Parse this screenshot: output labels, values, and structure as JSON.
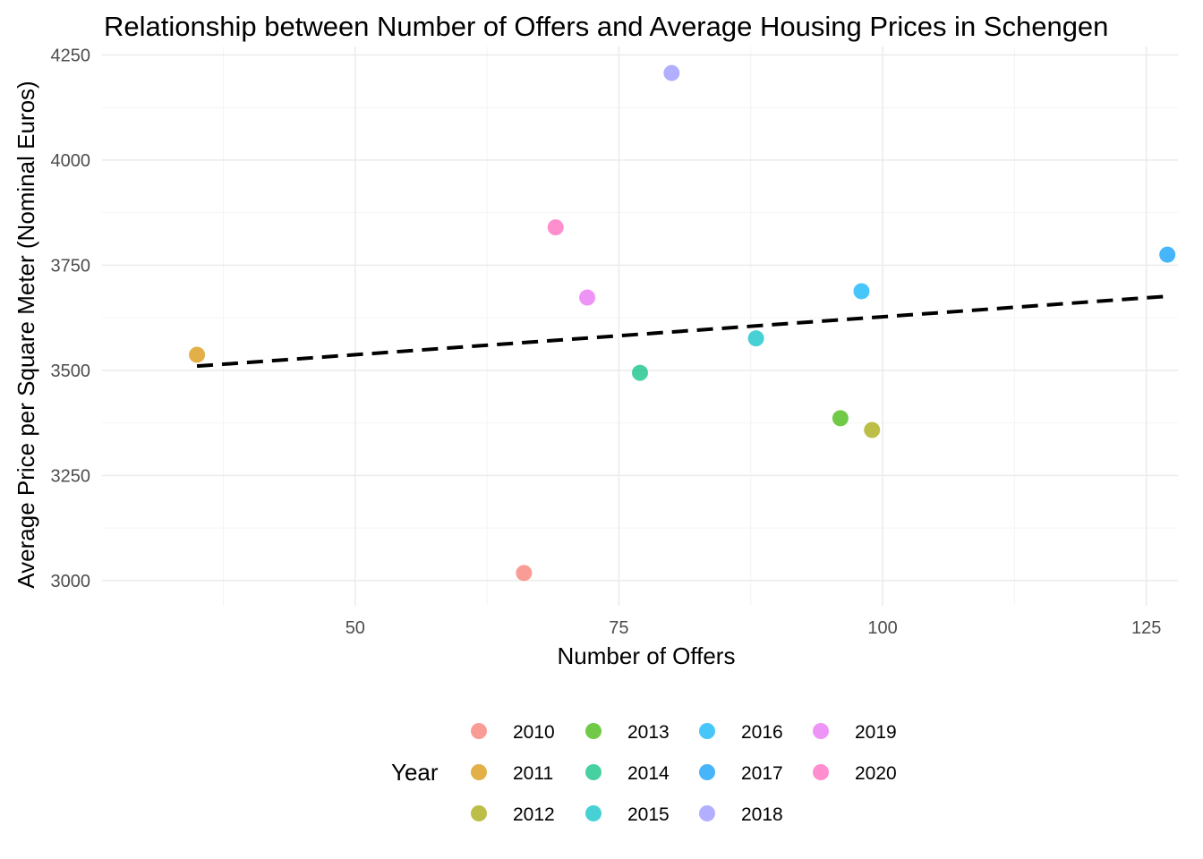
{
  "chart_data": {
    "type": "scatter",
    "title": "Relationship between Number of Offers and Average Housing Prices in Schengen",
    "xlabel": "Number of Offers",
    "ylabel": "Average Price per Square Meter (Nominal Euros)",
    "xlim": [
      26,
      128
    ],
    "ylim": [
      2940,
      4270
    ],
    "x_ticks": [
      50,
      75,
      100,
      125
    ],
    "y_ticks": [
      3000,
      3250,
      3500,
      3750,
      4000,
      4250
    ],
    "x_tick_labels": [
      "50",
      "75",
      "100",
      "125"
    ],
    "y_tick_labels": [
      "3000",
      "3250",
      "3500",
      "3750",
      "4000",
      "4250"
    ],
    "grid": true,
    "legend": {
      "title": "Year",
      "placement": "bottom"
    },
    "series": [
      {
        "name": "2010",
        "color": "#F8766D",
        "x": 66,
        "y": 3018
      },
      {
        "name": "2011",
        "color": "#D89000",
        "x": 35,
        "y": 3537
      },
      {
        "name": "2012",
        "color": "#A3A500",
        "x": 99,
        "y": 3358
      },
      {
        "name": "2013",
        "color": "#39B600",
        "x": 96,
        "y": 3386
      },
      {
        "name": "2014",
        "color": "#00BF7D",
        "x": 77,
        "y": 3494
      },
      {
        "name": "2015",
        "color": "#00BFC4",
        "x": 88,
        "y": 3576
      },
      {
        "name": "2016",
        "color": "#00B0F6",
        "x": 98,
        "y": 3688
      },
      {
        "name": "2017",
        "color": "#0099F8",
        "x": 127,
        "y": 3775
      },
      {
        "name": "2018",
        "color": "#9590FF",
        "x": 80,
        "y": 4207
      },
      {
        "name": "2019",
        "color": "#E76BF3",
        "x": 72,
        "y": 3673
      },
      {
        "name": "2020",
        "color": "#FF62BC",
        "x": 69,
        "y": 3840
      }
    ],
    "trend_line": {
      "style": "dashed",
      "color": "#000000",
      "x": [
        35,
        127
      ],
      "y": [
        3510,
        3676
      ]
    }
  }
}
